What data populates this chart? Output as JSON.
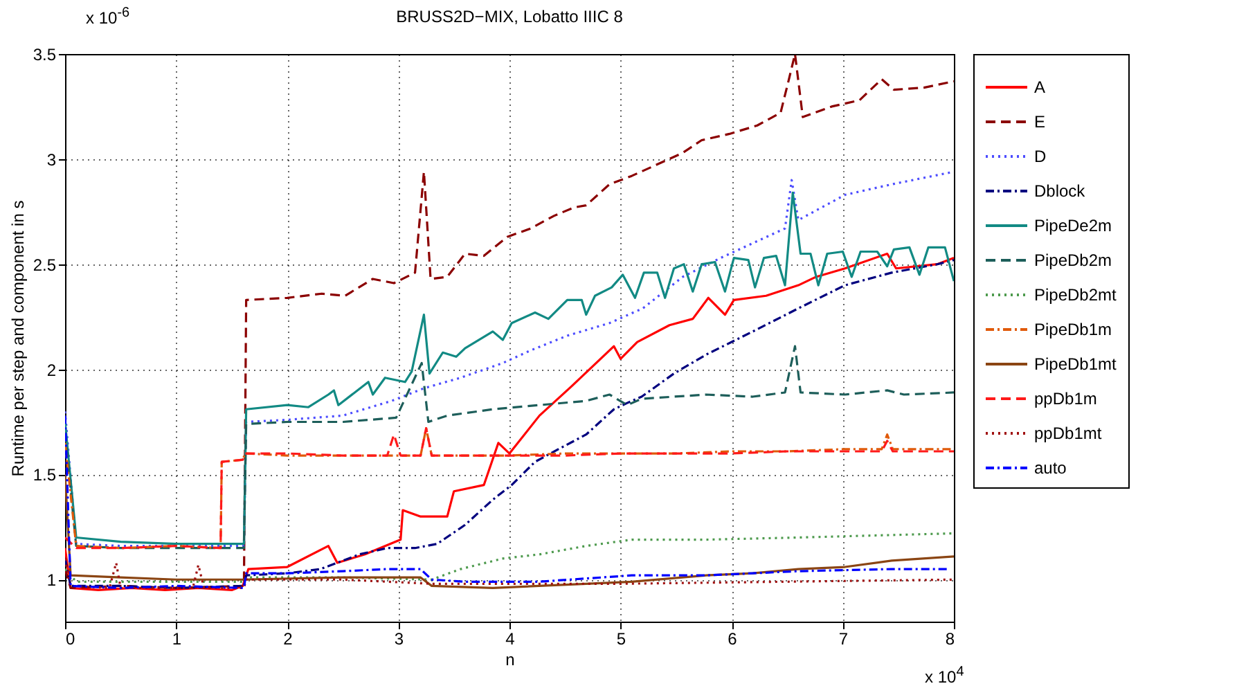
{
  "chart_data": {
    "type": "line",
    "title": "BRUSS2D−MIX, Lobatto IIIC 8",
    "xlabel": "n",
    "ylabel": "Runtime per step and component in s",
    "annotations": [
      "x 10$^{-6}$",
      "x 10$^{4}$"
    ],
    "xlim": [
      0,
      8
    ],
    "xticks": [
      0,
      1,
      2,
      3,
      4,
      5,
      6,
      7,
      8
    ],
    "ylim": [
      0.8,
      3.5
    ],
    "yticks": [
      1,
      1.5,
      2,
      2.5,
      3,
      3.5
    ],
    "grid": true,
    "legend": "top right",
    "series": [
      {
        "name": "A",
        "color": "#ff0000",
        "line_style": "solid",
        "x": [
          0,
          0.05,
          0.3,
          0.6,
          0.9,
          1.2,
          1.5,
          1.6,
          1.65,
          2.0,
          2.37,
          2.45,
          2.7,
          3.02,
          3.04,
          3.2,
          3.44,
          3.5,
          3.77,
          3.9,
          4.0,
          4.27,
          4.56,
          4.94,
          5.0,
          5.15,
          5.44,
          5.65,
          5.79,
          5.94,
          6.02,
          6.31,
          6.6,
          6.76,
          7.02,
          7.4,
          7.48,
          7.85,
          8
        ],
        "values": [
          1.15,
          0.96,
          0.95,
          0.96,
          0.95,
          0.96,
          0.95,
          0.97,
          1.05,
          1.06,
          1.16,
          1.08,
          1.12,
          1.19,
          1.33,
          1.3,
          1.3,
          1.42,
          1.45,
          1.65,
          1.6,
          1.78,
          1.92,
          2.11,
          2.05,
          2.13,
          2.21,
          2.24,
          2.34,
          2.26,
          2.33,
          2.35,
          2.4,
          2.44,
          2.48,
          2.55,
          2.48,
          2.5,
          2.53
        ]
      },
      {
        "name": "E",
        "color": "#8b0000",
        "line_style": "dashed",
        "x": [
          0,
          0.05,
          0.5,
          1.0,
          1.61,
          1.63,
          2.0,
          2.31,
          2.52,
          2.77,
          2.96,
          3.15,
          3.23,
          3.29,
          3.44,
          3.6,
          3.77,
          3.98,
          4.19,
          4.4,
          4.58,
          4.69,
          4.9,
          5.1,
          5.31,
          5.56,
          5.73,
          5.98,
          6.23,
          6.44,
          6.52,
          6.57,
          6.64,
          6.9,
          7.15,
          7.35,
          7.46,
          7.73,
          8
        ],
        "values": [
          1.05,
          0.96,
          0.97,
          0.96,
          0.97,
          2.33,
          2.34,
          2.36,
          2.35,
          2.43,
          2.41,
          2.46,
          2.94,
          2.43,
          2.44,
          2.55,
          2.54,
          2.63,
          2.67,
          2.73,
          2.77,
          2.78,
          2.88,
          2.92,
          2.97,
          3.03,
          3.09,
          3.12,
          3.16,
          3.22,
          3.39,
          3.5,
          3.2,
          3.25,
          3.28,
          3.38,
          3.33,
          3.34,
          3.37
        ]
      },
      {
        "name": "D",
        "color": "#4d4dff",
        "line_style": "dotted",
        "x": [
          0,
          0.1,
          0.5,
          1.0,
          1.61,
          1.63,
          2.0,
          2.5,
          2.94,
          3.23,
          3.56,
          3.94,
          4.19,
          4.52,
          4.9,
          5.2,
          5.56,
          5.9,
          6.19,
          6.48,
          6.54,
          6.6,
          7.02,
          7.44,
          8
        ],
        "values": [
          1.8,
          1.17,
          1.16,
          1.16,
          1.16,
          1.75,
          1.76,
          1.78,
          1.85,
          1.91,
          1.96,
          2.03,
          2.09,
          2.16,
          2.22,
          2.29,
          2.44,
          2.53,
          2.6,
          2.67,
          2.9,
          2.71,
          2.83,
          2.88,
          2.94
        ]
      },
      {
        "name": "Dblock",
        "color": "#00007f",
        "line_style": "dashdot",
        "x": [
          0,
          0.05,
          0.5,
          1.0,
          1.61,
          1.63,
          2.0,
          2.3,
          2.65,
          2.9,
          3.15,
          3.35,
          3.6,
          3.85,
          4.02,
          4.23,
          4.44,
          4.69,
          4.94,
          5.06,
          5.19,
          5.48,
          5.77,
          6.19,
          6.6,
          7.02,
          7.44,
          7.85,
          8
        ],
        "values": [
          1.1,
          0.97,
          0.97,
          0.96,
          0.97,
          1.02,
          1.03,
          1.05,
          1.12,
          1.15,
          1.15,
          1.17,
          1.26,
          1.38,
          1.45,
          1.56,
          1.62,
          1.69,
          1.81,
          1.84,
          1.87,
          1.98,
          2.07,
          2.18,
          2.29,
          2.4,
          2.46,
          2.5,
          2.52
        ]
      },
      {
        "name": "PipeDe2m",
        "color": "#128a84",
        "line_style": "solid",
        "x": [
          0,
          0.1,
          0.5,
          1.0,
          1.61,
          1.63,
          2.0,
          2.19,
          2.37,
          2.42,
          2.46,
          2.73,
          2.77,
          2.88,
          3.06,
          3.12,
          3.23,
          3.28,
          3.4,
          3.52,
          3.6,
          3.85,
          3.94,
          4.02,
          4.23,
          4.35,
          4.52,
          4.65,
          4.69,
          4.77,
          4.92,
          5.02,
          5.13,
          5.21,
          5.33,
          5.4,
          5.48,
          5.57,
          5.65,
          5.73,
          5.85,
          5.94,
          6.02,
          6.15,
          6.21,
          6.29,
          6.4,
          6.48,
          6.55,
          6.62,
          6.71,
          6.78,
          6.86,
          7.0,
          7.08,
          7.16,
          7.31,
          7.4,
          7.46,
          7.6,
          7.69,
          7.77,
          7.92,
          8
        ],
        "values": [
          1.75,
          1.2,
          1.18,
          1.17,
          1.17,
          1.81,
          1.83,
          1.82,
          1.88,
          1.9,
          1.83,
          1.94,
          1.88,
          1.96,
          1.94,
          1.99,
          2.26,
          1.98,
          2.08,
          2.06,
          2.1,
          2.18,
          2.14,
          2.22,
          2.27,
          2.24,
          2.33,
          2.33,
          2.26,
          2.35,
          2.39,
          2.45,
          2.34,
          2.46,
          2.46,
          2.34,
          2.48,
          2.5,
          2.37,
          2.5,
          2.51,
          2.37,
          2.53,
          2.52,
          2.39,
          2.53,
          2.54,
          2.4,
          2.84,
          2.55,
          2.55,
          2.4,
          2.55,
          2.56,
          2.44,
          2.56,
          2.56,
          2.49,
          2.57,
          2.58,
          2.45,
          2.58,
          2.58,
          2.42
        ]
      },
      {
        "name": "PipeDb2m",
        "color": "#1d5e5a",
        "line_style": "dashed",
        "x": [
          0,
          0.1,
          0.5,
          1.0,
          1.61,
          1.63,
          2.0,
          2.5,
          2.98,
          3.21,
          3.27,
          3.44,
          3.85,
          4.27,
          4.69,
          4.9,
          5.06,
          5.19,
          5.77,
          6.19,
          6.48,
          6.57,
          6.62,
          7.02,
          7.4,
          7.55,
          8
        ],
        "values": [
          1.7,
          1.16,
          1.15,
          1.15,
          1.15,
          1.74,
          1.75,
          1.75,
          1.77,
          2.03,
          1.75,
          1.78,
          1.81,
          1.83,
          1.85,
          1.88,
          1.83,
          1.86,
          1.88,
          1.87,
          1.89,
          2.11,
          1.89,
          1.88,
          1.9,
          1.88,
          1.89
        ]
      },
      {
        "name": "PipeDb2mt",
        "color": "#4d9a4d",
        "line_style": "dotted",
        "x": [
          0,
          0.1,
          0.8,
          1.61,
          1.63,
          2.5,
          3.3,
          3.56,
          3.94,
          4.27,
          4.69,
          5.1,
          5.77,
          6.6,
          8
        ],
        "values": [
          1.05,
          0.99,
          0.99,
          0.99,
          1.01,
          1.01,
          1.0,
          1.05,
          1.1,
          1.12,
          1.16,
          1.19,
          1.19,
          1.2,
          1.22
        ]
      },
      {
        "name": "PipeDb1m",
        "color": "#e05a0a",
        "line_style": "dashdot",
        "x": [
          0,
          0.1,
          0.5,
          1.0,
          1.4,
          1.41,
          1.6,
          1.62,
          2.0,
          2.5,
          3.0,
          3.2,
          3.25,
          3.3,
          4.0,
          4.5,
          5.0,
          5.5,
          6.0,
          6.5,
          7.0,
          7.35,
          7.4,
          7.45,
          8
        ],
        "values": [
          1.65,
          1.16,
          1.15,
          1.16,
          1.15,
          1.56,
          1.57,
          1.6,
          1.59,
          1.59,
          1.59,
          1.59,
          1.72,
          1.59,
          1.59,
          1.6,
          1.6,
          1.6,
          1.61,
          1.61,
          1.62,
          1.62,
          1.69,
          1.62,
          1.62
        ]
      },
      {
        "name": "PipeDb1mt",
        "color": "#8b4513",
        "line_style": "solid",
        "x": [
          0,
          0.05,
          0.5,
          1.0,
          1.6,
          2.5,
          3.2,
          3.3,
          3.85,
          4.69,
          5.1,
          5.77,
          6.19,
          6.6,
          7.02,
          7.44,
          8
        ],
        "values": [
          1.5,
          1.02,
          1.01,
          1.0,
          1.0,
          1.01,
          1.01,
          0.97,
          0.96,
          0.98,
          0.99,
          1.02,
          1.03,
          1.05,
          1.06,
          1.09,
          1.11
        ]
      },
      {
        "name": "ppDb1m",
        "color": "#ff1a1a",
        "line_style": "dashed",
        "x": [
          0,
          0.1,
          0.5,
          1.0,
          1.4,
          1.41,
          1.6,
          1.62,
          2.0,
          2.5,
          2.9,
          2.96,
          3.02,
          3.2,
          3.25,
          3.3,
          4.0,
          4.5,
          5.0,
          5.5,
          6.0,
          6.5,
          7.0,
          7.35,
          7.4,
          7.45,
          8
        ],
        "values": [
          1.2,
          1.15,
          1.15,
          1.16,
          1.15,
          1.56,
          1.57,
          1.6,
          1.6,
          1.59,
          1.59,
          1.69,
          1.59,
          1.59,
          1.72,
          1.59,
          1.59,
          1.59,
          1.6,
          1.6,
          1.6,
          1.61,
          1.61,
          1.61,
          1.66,
          1.61,
          1.61
        ]
      },
      {
        "name": "ppDb1mt",
        "color": "#a01010",
        "line_style": "dotted",
        "x": [
          0,
          0.05,
          0.4,
          0.46,
          0.5,
          1.0,
          1.15,
          1.2,
          1.25,
          1.61,
          1.63,
          2.5,
          3.3,
          5.0,
          6.5,
          8
        ],
        "values": [
          1.1,
          0.97,
          0.96,
          1.08,
          0.96,
          0.96,
          0.96,
          1.07,
          0.96,
          0.96,
          1.0,
          1.0,
          0.98,
          0.98,
          0.99,
          1.0
        ]
      },
      {
        "name": "auto",
        "color": "#0000ff",
        "line_style": "dashdot",
        "x": [
          0,
          0.05,
          0.5,
          1.0,
          1.61,
          1.63,
          2.0,
          2.5,
          2.9,
          3.2,
          3.3,
          3.6,
          4.27,
          5.1,
          5.77,
          6.19,
          6.6,
          7.44,
          7.96
        ],
        "values": [
          1.78,
          0.97,
          0.96,
          0.97,
          0.96,
          1.03,
          1.03,
          1.04,
          1.05,
          1.05,
          1.0,
          0.99,
          0.99,
          1.02,
          1.02,
          1.03,
          1.04,
          1.05,
          1.05
        ]
      }
    ]
  }
}
